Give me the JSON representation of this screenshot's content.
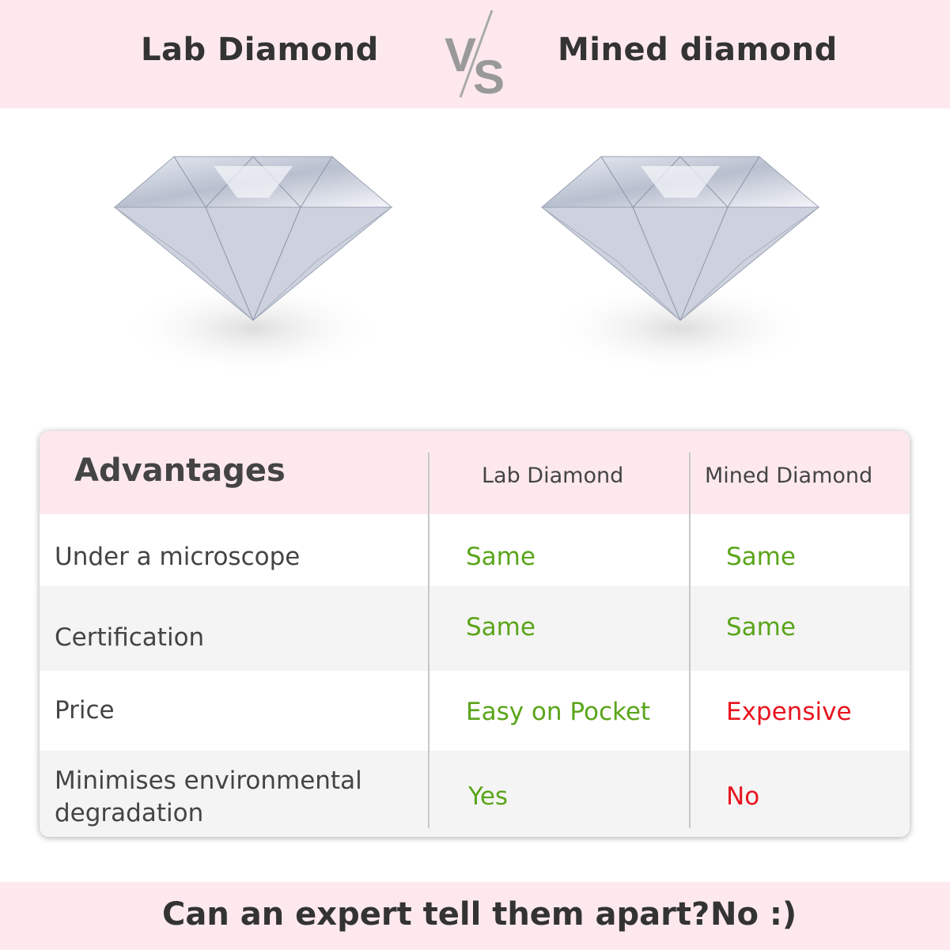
{
  "header": {
    "left_title": "Lab Diamond",
    "vs_label": "VS",
    "right_title": "Mined diamond"
  },
  "table": {
    "headers": [
      "Advantages",
      "Lab Diamond",
      "Mined Diamond"
    ],
    "rows": [
      {
        "label": "Under a microscope",
        "lab": "Same",
        "mined": "Same"
      },
      {
        "label": "Certification",
        "lab": "Same",
        "mined": "Same"
      },
      {
        "label": "Price",
        "lab": "Easy on Pocket",
        "mined": "Expensive"
      },
      {
        "label": "Minimises environmental degradation",
        "lab": "Yes",
        "mined": "No"
      }
    ]
  },
  "footer": {
    "question": "Can an expert tell them apart?",
    "answer": "No :)"
  },
  "colors": {
    "band": "#fde9ed",
    "positive": "#5aa51a",
    "negative": "#e8141f",
    "text": "#444444"
  }
}
